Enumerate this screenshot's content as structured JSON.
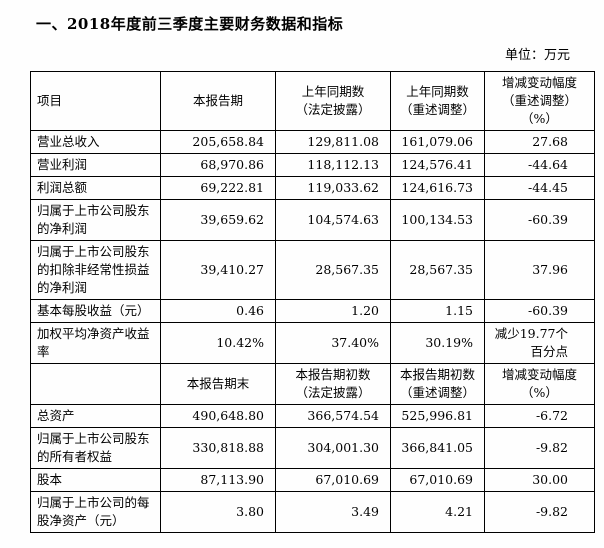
{
  "page": {
    "title": "一、2018年度前三季度主要财务数据和指标",
    "unit_label": "单位：万元"
  },
  "table": {
    "sections": [
      {
        "header": [
          {
            "lines": [
              "项目"
            ]
          },
          {
            "lines": [
              "本报告期"
            ]
          },
          {
            "lines": [
              "上年同期数",
              "（法定披露）"
            ]
          },
          {
            "lines": [
              "上年同期数",
              "（重述调整）"
            ]
          },
          {
            "lines": [
              "增减变动幅度",
              "（重述调整）",
              "（%）"
            ]
          }
        ],
        "rows": [
          {
            "cells": [
              "营业总收入",
              "205,658.84",
              "129,811.08",
              "161,079.06",
              "27.68"
            ]
          },
          {
            "cells": [
              "营业利润",
              "68,970.86",
              "118,112.13",
              "124,576.41",
              "-44.64"
            ]
          },
          {
            "cells": [
              "利润总额",
              "69,222.81",
              "119,033.62",
              "124,616.73",
              "-44.45"
            ]
          },
          {
            "cells": [
              "归属于上市公司股东的净利润",
              "39,659.62",
              "104,574.63",
              "100,134.53",
              "-60.39"
            ]
          },
          {
            "cells": [
              "归属于上市公司股东的扣除非经常性损益的净利润",
              "39,410.27",
              "28,567.35",
              "28,567.35",
              "37.96"
            ]
          },
          {
            "cells": [
              "基本每股收益（元）",
              "0.46",
              "1.20",
              "1.15",
              "-60.39"
            ]
          },
          {
            "cells": [
              "加权平均净资产收益率",
              "10.42%",
              "37.40%",
              "30.19%",
              "减少19.77个百分点"
            ]
          }
        ]
      },
      {
        "header": [
          {
            "lines": [
              ""
            ]
          },
          {
            "lines": [
              "本报告期末"
            ]
          },
          {
            "lines": [
              "本报告期初数",
              "（法定披露）"
            ]
          },
          {
            "lines": [
              "本报告期初数",
              "（重述调整）"
            ]
          },
          {
            "lines": [
              "增减变动幅度",
              "（%）"
            ]
          }
        ],
        "rows": [
          {
            "cells": [
              "总资产",
              "490,648.80",
              "366,574.54",
              "525,996.81",
              "-6.72"
            ]
          },
          {
            "cells": [
              "归属于上市公司股东的所有者权益",
              "330,818.88",
              "304,001.30",
              "366,841.05",
              "-9.82"
            ]
          },
          {
            "cells": [
              "股本",
              "87,113.90",
              "67,010.69",
              "67,010.69",
              "30.00"
            ]
          },
          {
            "cells": [
              "归属于上市公司的每股净资产（元）",
              "3.80",
              "3.49",
              "4.21",
              "-9.82"
            ]
          }
        ]
      }
    ]
  }
}
